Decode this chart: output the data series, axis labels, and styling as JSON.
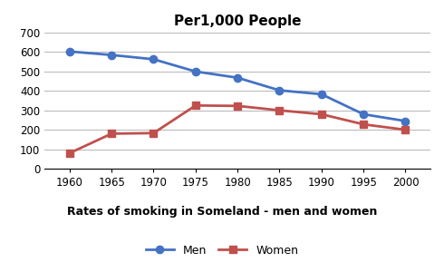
{
  "title": "Per1,000 People",
  "xlabel": "Rates of smoking in Someland - men and women",
  "ylabel": "",
  "years": [
    1960,
    1965,
    1970,
    1975,
    1980,
    1985,
    1990,
    1995,
    2000
  ],
  "men": [
    603,
    585,
    563,
    500,
    468,
    403,
    383,
    280,
    245
  ],
  "women": [
    80,
    180,
    183,
    325,
    323,
    300,
    280,
    228,
    200
  ],
  "men_color": "#4472C4",
  "women_color": "#C0504D",
  "ylim": [
    0,
    700
  ],
  "yticks": [
    0,
    100,
    200,
    300,
    400,
    500,
    600,
    700
  ],
  "legend_labels": [
    "Men",
    "Women"
  ],
  "marker_men": "o",
  "marker_women": "s",
  "bg_color": "#FFFFFF",
  "grid_color": "#BBBBBB"
}
